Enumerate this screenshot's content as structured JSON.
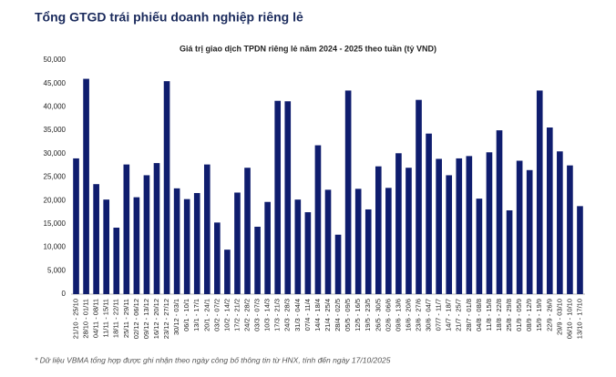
{
  "title": "Tổng GTGD trái phiếu doanh nghiệp riêng lẻ",
  "footnote": "* Dữ liệu VBMA tổng hợp được ghi nhận theo ngày công bố thông tin từ HNX, tính đến ngày 17/10/2025",
  "chart_data": {
    "type": "bar",
    "title": "Giá trị giao dịch TPDN riêng lẻ năm 2024 - 2025 theo tuần (tỷ VND)",
    "categories": [
      "21/10 - 25/10",
      "28/10 - 01/11",
      "04/11 - 08/11",
      "11/11 - 15/11",
      "18/11 - 22/11",
      "25/11 - 29/11",
      "02/12 - 06/12",
      "09/12 - 13/12",
      "16/12 - 20/12",
      "23/12 - 27/12",
      "30/12 - 03/1",
      "06/1 - 10/1",
      "13/1 - 17/1",
      "20/1 - 24/1",
      "03/2 - 07/2",
      "10/2 - 14/2",
      "17/2 - 21/2",
      "24/2 - 28/2",
      "03/3 - 07/3",
      "10/3 - 14/3",
      "17/3 - 21/3",
      "24/3 - 28/3",
      "31/3 - 04/4",
      "07/4 - 11/4",
      "14/4 - 18/4",
      "21/4 - 25/4",
      "28/4 - 02/5",
      "05/5 - 09/5",
      "12/5 - 16/5",
      "19/5 - 23/5",
      "26/5 - 30/5",
      "02/6 - 06/6",
      "09/6 - 13/6",
      "16/6 - 20/6",
      "23/6 - 27/6",
      "30/6 - 04/7",
      "07/7 - 11/7",
      "14/7 - 18/7",
      "21/7 - 25/7",
      "28/7 - 01/8",
      "04/8 - 08/8",
      "11/8 - 15/8",
      "18/8 - 22/8",
      "25/8 - 29/8",
      "01/9 - 05/9",
      "08/9 - 12/9",
      "15/9 - 19/9",
      "22/9 - 26/9",
      "29/9 - 03/10",
      "06/10 - 10/10",
      "13/10 - 17/10"
    ],
    "values": [
      29000,
      46000,
      23500,
      20200,
      14200,
      27700,
      20700,
      25400,
      28000,
      45500,
      22600,
      20300,
      21600,
      27700,
      15300,
      9500,
      21700,
      27000,
      14400,
      19700,
      41300,
      41200,
      20200,
      17500,
      31800,
      22300,
      12700,
      43500,
      22500,
      18100,
      27300,
      22700,
      30100,
      27000,
      41500,
      34300,
      28900,
      25400,
      29000,
      29500,
      20400,
      30300,
      35000,
      17900,
      28500,
      26500,
      43500,
      35600,
      30500,
      27500,
      18800
    ],
    "color": "#0f1d6e",
    "ylim": [
      0,
      50000
    ],
    "yticks": [
      0,
      {
        "value": 5000,
        "label": "5,000"
      },
      {
        "value": 10000,
        "label": "10,000"
      },
      {
        "value": 15000,
        "label": "15,000"
      },
      {
        "value": 20000,
        "label": "20,000"
      },
      {
        "value": 25000,
        "label": "25,000"
      },
      {
        "value": 30000,
        "label": "30,000"
      },
      {
        "value": 35000,
        "label": "35,000"
      },
      {
        "value": 40000,
        "label": "40,000"
      },
      {
        "value": 45000,
        "label": "45,000"
      },
      {
        "value": 50000,
        "label": "50,000"
      }
    ],
    "grid": false
  }
}
